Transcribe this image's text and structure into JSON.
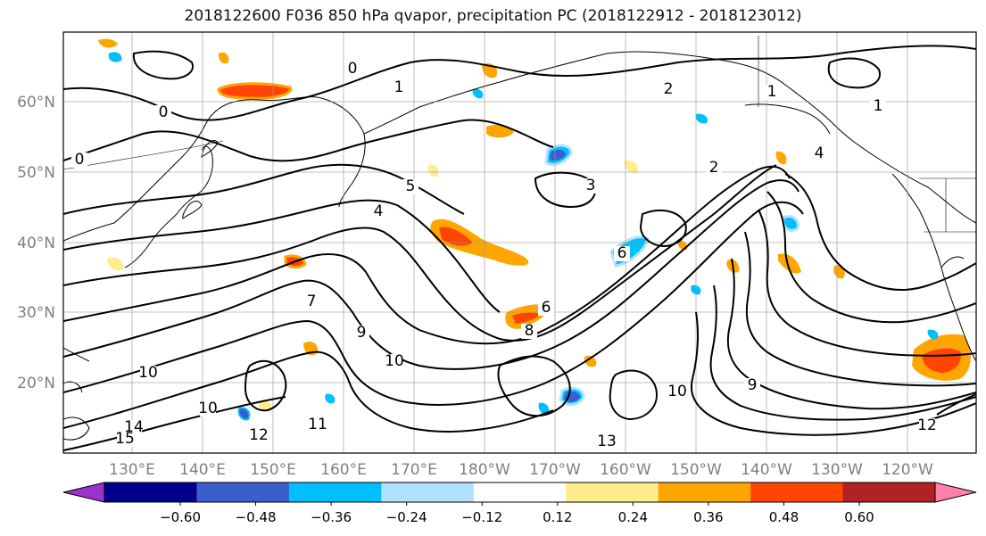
{
  "title": "2018122600 F036 850 hPa qvapor, precipitation PC (2018122912 - 2018123012)",
  "map": {
    "lat_ticks": [
      "60°N",
      "50°N",
      "40°N",
      "30°N",
      "20°N"
    ],
    "lon_ticks": [
      "130°E",
      "140°E",
      "150°E",
      "160°E",
      "170°E",
      "180°W",
      "170°W",
      "160°W",
      "150°W",
      "140°W",
      "130°W",
      "120°W"
    ],
    "tick_label_color": "#808080",
    "contour_labels": [
      "0",
      "0",
      "0",
      "1",
      "1",
      "1",
      "2",
      "2",
      "3",
      "4",
      "4",
      "5",
      "6",
      "6",
      "7",
      "8",
      "9",
      "9",
      "10",
      "10",
      "10",
      "10",
      "11",
      "12",
      "12",
      "14",
      "15",
      "13"
    ]
  },
  "colorbar": {
    "ticks": [
      "−0.60",
      "−0.48",
      "−0.36",
      "−0.24",
      "−0.12",
      "0.12",
      "0.24",
      "0.36",
      "0.48",
      "0.60"
    ],
    "colors": [
      "#9a32cd",
      "#00008b",
      "#3a5fcd",
      "#00bfff",
      "#b0e2ff",
      "#ffffff",
      "#ffec8b",
      "#ffa500",
      "#ff4500",
      "#b22222",
      "#ff82ab"
    ]
  }
}
